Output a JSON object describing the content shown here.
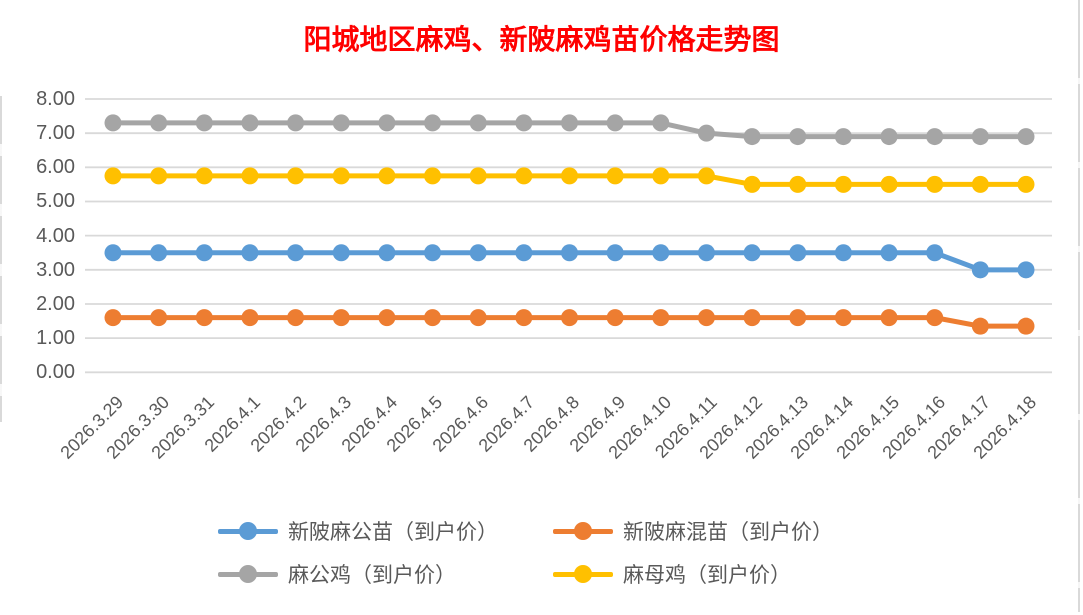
{
  "title": {
    "text": "阳城地区麻鸡、新陂麻鸡苗价格走势图",
    "color": "#FF0000"
  },
  "colors": {
    "background": "#FFFFFF",
    "gridline": "#D9D9D9",
    "axis_text": "#595959",
    "title": "#FF0000"
  },
  "chart_data": {
    "type": "line",
    "title": "阳城地区麻鸡、新陂麻鸡苗价格走势图",
    "categories": [
      "2026.3.29",
      "2026.3.30",
      "2026.3.31",
      "2026.4.1",
      "2026.4.2",
      "2026.4.3",
      "2026.4.4",
      "2026.4.5",
      "2026.4.6",
      "2026.4.7",
      "2026.4.8",
      "2026.4.9",
      "2026.4.10",
      "2026.4.11",
      "2026.4.12",
      "2026.4.13",
      "2026.4.14",
      "2026.4.15",
      "2026.4.16",
      "2026.4.17",
      "2026.4.18"
    ],
    "series": [
      {
        "name": "新陂麻公苗（到户价）",
        "color": "#5B9BD5",
        "values": [
          3.5,
          3.5,
          3.5,
          3.5,
          3.5,
          3.5,
          3.5,
          3.5,
          3.5,
          3.5,
          3.5,
          3.5,
          3.5,
          3.5,
          3.5,
          3.5,
          3.5,
          3.5,
          3.5,
          3.0,
          3.0
        ]
      },
      {
        "name": "新陂麻混苗（到户价）",
        "color": "#ED7D31",
        "values": [
          1.6,
          1.6,
          1.6,
          1.6,
          1.6,
          1.6,
          1.6,
          1.6,
          1.6,
          1.6,
          1.6,
          1.6,
          1.6,
          1.6,
          1.6,
          1.6,
          1.6,
          1.6,
          1.6,
          1.35,
          1.35
        ]
      },
      {
        "name": "麻公鸡（到户价）",
        "color": "#A5A5A5",
        "values": [
          7.3,
          7.3,
          7.3,
          7.3,
          7.3,
          7.3,
          7.3,
          7.3,
          7.3,
          7.3,
          7.3,
          7.3,
          7.3,
          7.0,
          6.9,
          6.9,
          6.9,
          6.9,
          6.9,
          6.9,
          6.9
        ]
      },
      {
        "name": "麻母鸡（到户价）",
        "color": "#FFC000",
        "values": [
          5.75,
          5.75,
          5.75,
          5.75,
          5.75,
          5.75,
          5.75,
          5.75,
          5.75,
          5.75,
          5.75,
          5.75,
          5.75,
          5.75,
          5.5,
          5.5,
          5.5,
          5.5,
          5.5,
          5.5,
          5.5
        ]
      }
    ],
    "ylim": [
      0,
      8
    ],
    "ytick_step": 1,
    "ytick_labels": [
      "0.00",
      "1.00",
      "2.00",
      "3.00",
      "4.00",
      "5.00",
      "6.00",
      "7.00",
      "8.00"
    ],
    "xlabel": "",
    "ylabel": "",
    "grid": true,
    "legend_position": "bottom"
  }
}
